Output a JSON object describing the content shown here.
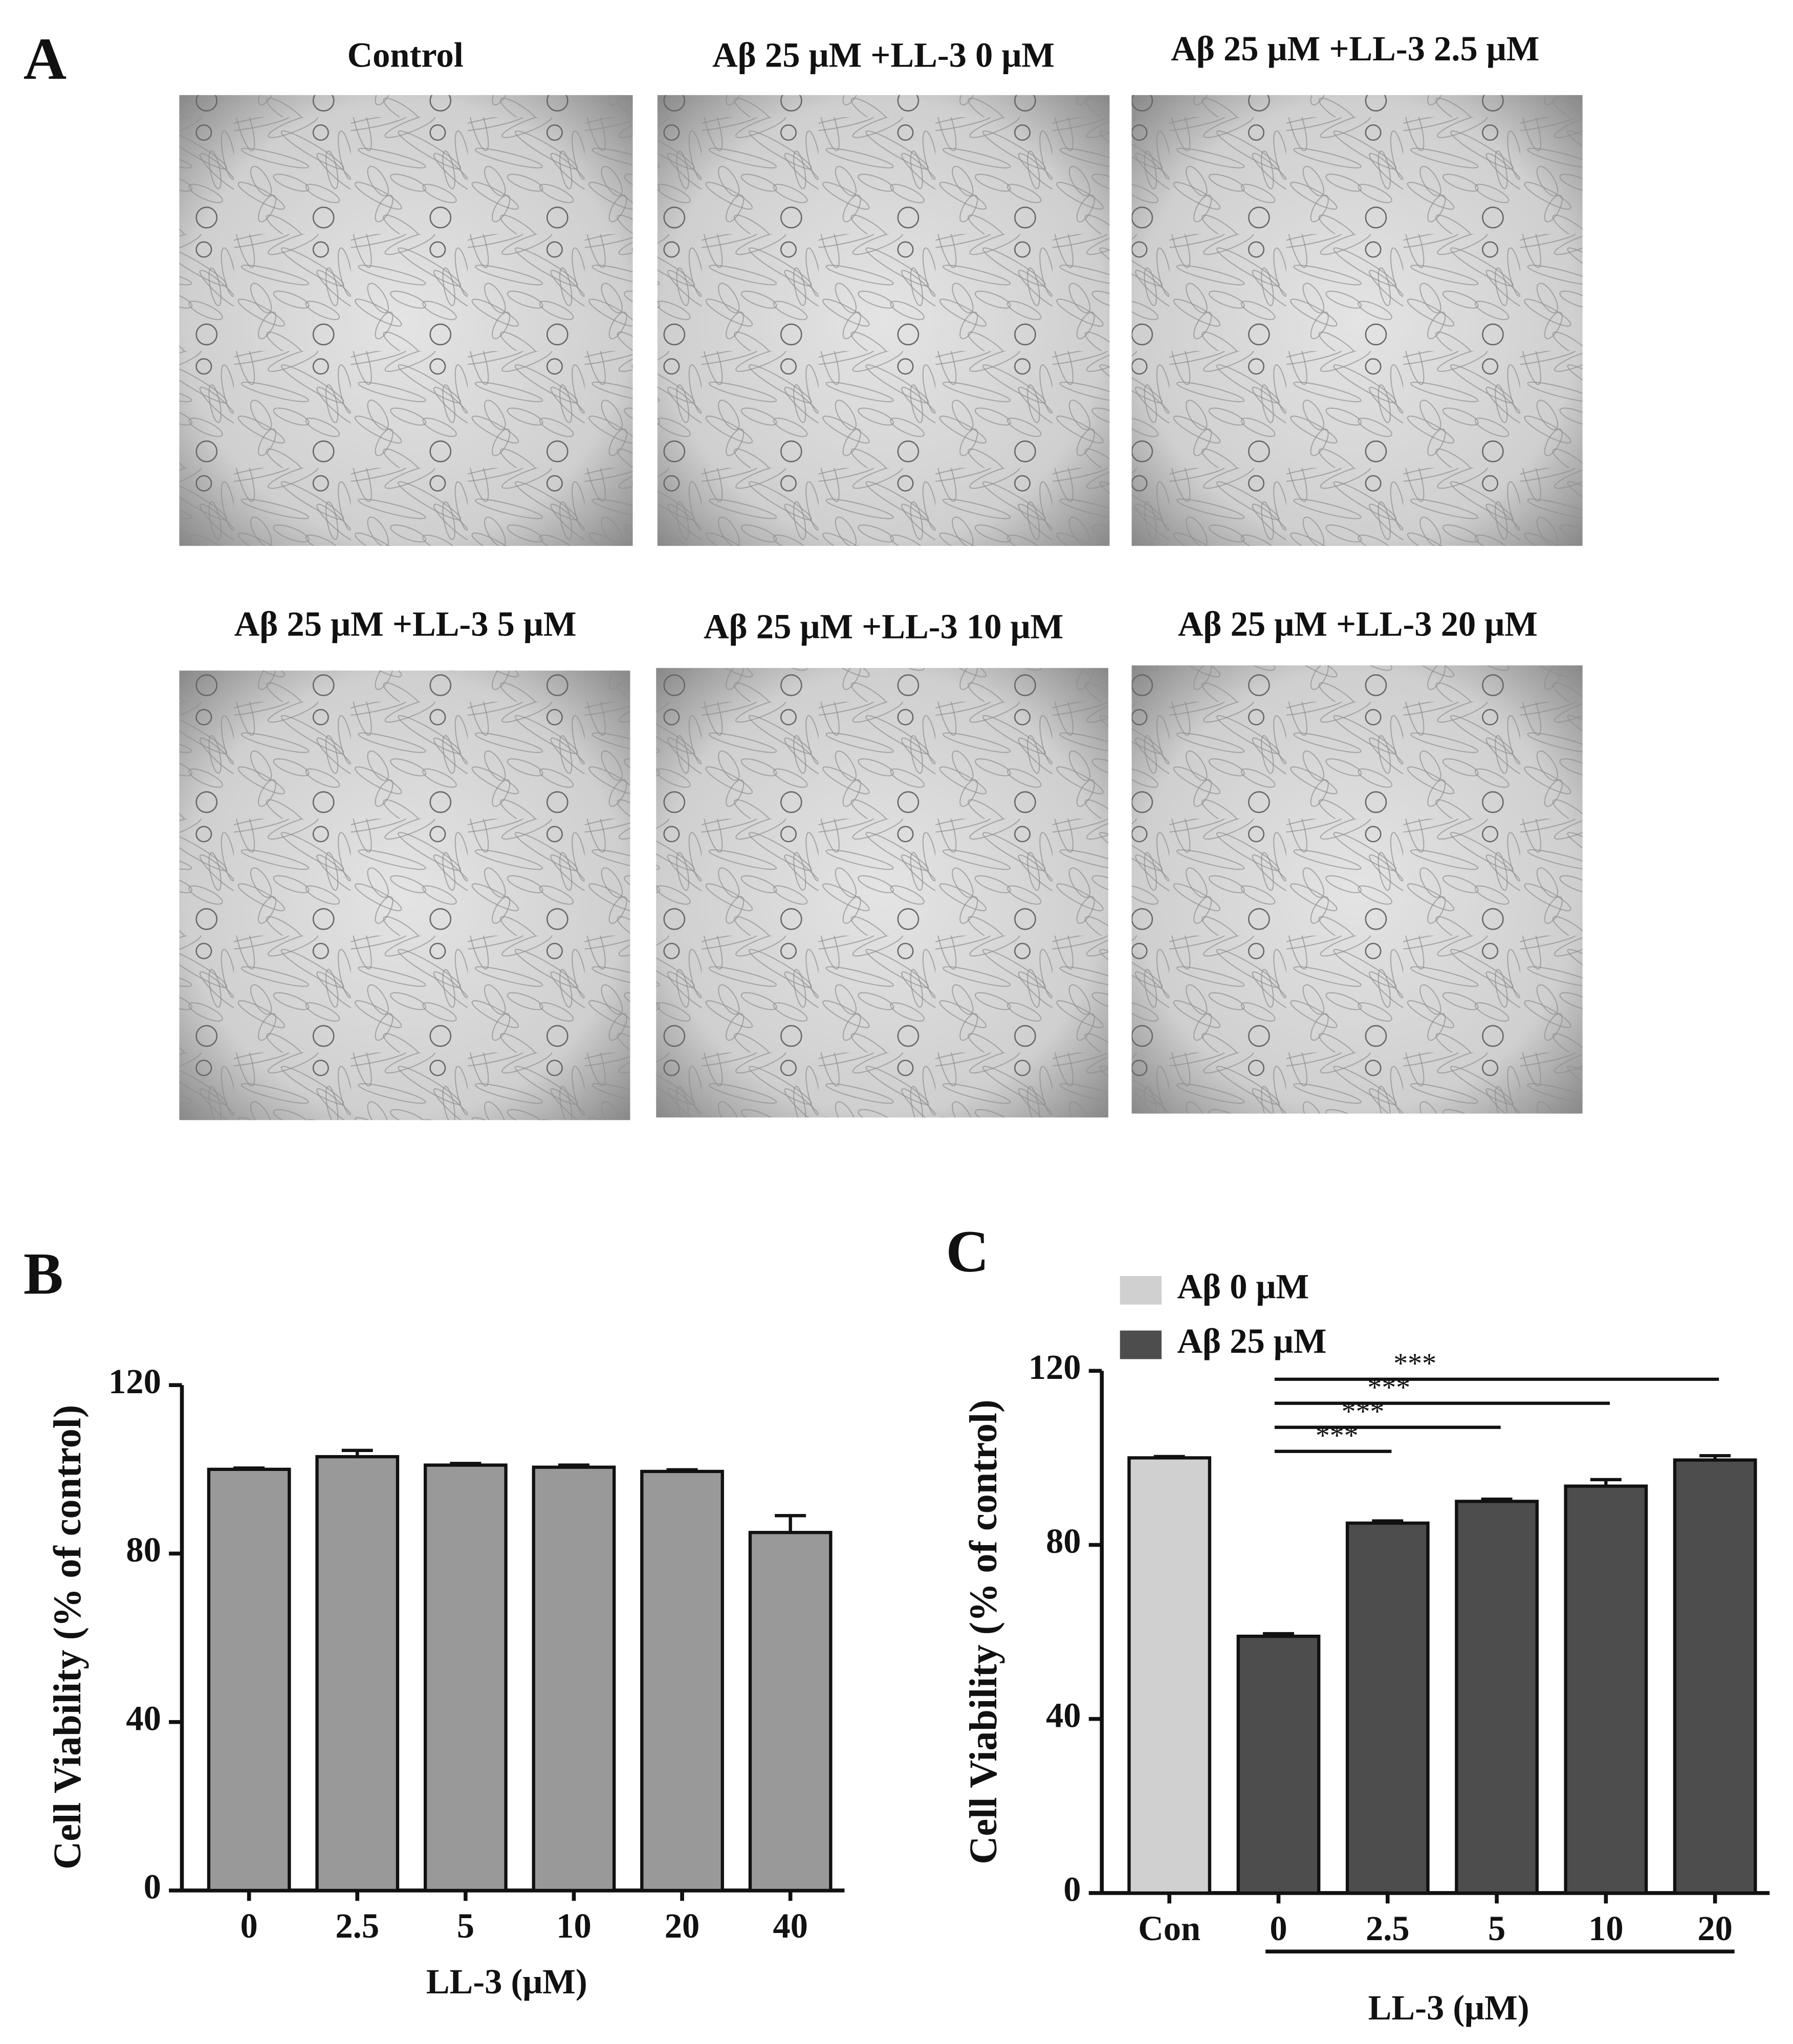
{
  "panel_a": {
    "label": "A",
    "images": [
      "Control",
      "Aβ 25 μM +LL-3 0 μM",
      "Aβ 25 μM +LL-3 2.5 μM",
      "Aβ 25 μM +LL-3 5 μM",
      "Aβ 25 μM +LL-3 10 μM",
      "Aβ 25 μM +LL-3 20 μM"
    ]
  },
  "chart_data": [
    {
      "type": "bar",
      "panel_label": "B",
      "categories": [
        "0",
        "2.5",
        "5",
        "10",
        "20",
        "40"
      ],
      "values": [
        100,
        103,
        101,
        100.5,
        99.5,
        85
      ],
      "errors": [
        0.3,
        1.5,
        0.4,
        0.5,
        0.4,
        4
      ],
      "color": "#999999",
      "xlabel": "LL-3 (μM)",
      "ylabel": "Cell Viability (% of control)",
      "ylim": [
        0,
        120
      ],
      "yticks": [
        0,
        40,
        80,
        120
      ]
    },
    {
      "type": "bar",
      "panel_label": "C",
      "categories": [
        "Con",
        "0",
        "2.5",
        "5",
        "10",
        "20"
      ],
      "series": [
        {
          "name": "Aβ   0 μM",
          "color": "#d0d0d0",
          "values": [
            100,
            null,
            null,
            null,
            null,
            null
          ],
          "errors": [
            0.3,
            null,
            null,
            null,
            null,
            null
          ]
        },
        {
          "name": "Aβ 25 μM",
          "color": "#4d4d4d",
          "values": [
            null,
            59,
            85,
            90,
            93.5,
            99.5
          ],
          "errors": [
            null,
            0.6,
            0.5,
            0.5,
            1.5,
            1
          ]
        }
      ],
      "legend": "top-left",
      "annotations": [
        {
          "text": "***",
          "from": "0",
          "to": "2.5"
        },
        {
          "text": "***",
          "from": "0",
          "to": "5"
        },
        {
          "text": "***",
          "from": "0",
          "to": "10"
        },
        {
          "text": "***",
          "from": "0",
          "to": "20"
        }
      ],
      "xlabel": "LL-3 (μM)",
      "ylabel": "Cell Viability (% of control)",
      "ylim": [
        0,
        120
      ],
      "yticks": [
        0,
        40,
        80,
        120
      ]
    }
  ]
}
